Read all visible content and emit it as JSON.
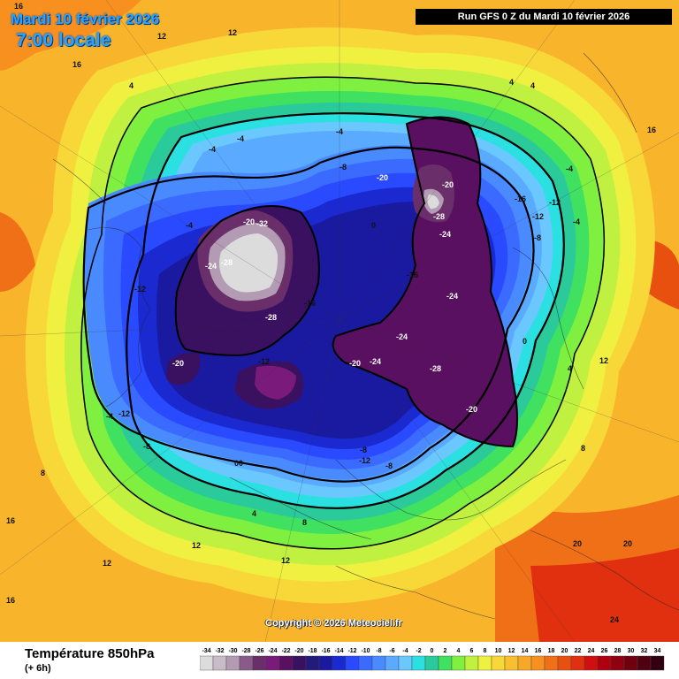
{
  "header": {
    "date_line": "Mardi 10 février 2026",
    "time_line": "7:00 locale",
    "run_info": "Run GFS 0 Z du Mardi 10 février 2026",
    "copyright": "Copyright © 2026 Meteociel.fr"
  },
  "legend": {
    "title": "Température 850hPa",
    "subtitle": "(+ 6h)",
    "scale": [
      {
        "v": "-34",
        "c": "#dcdcdc"
      },
      {
        "v": "-32",
        "c": "#c8bcc8"
      },
      {
        "v": "-30",
        "c": "#b49bb4"
      },
      {
        "v": "-28",
        "c": "#8a5a8a"
      },
      {
        "v": "-26",
        "c": "#6a2f6a"
      },
      {
        "v": "-24",
        "c": "#7a1a7a"
      },
      {
        "v": "-22",
        "c": "#5a1060"
      },
      {
        "v": "-20",
        "c": "#3a1060"
      },
      {
        "v": "-18",
        "c": "#231a7a"
      },
      {
        "v": "-16",
        "c": "#1a1aa0"
      },
      {
        "v": "-14",
        "c": "#1a2ad0"
      },
      {
        "v": "-12",
        "c": "#2a4aff"
      },
      {
        "v": "-10",
        "c": "#3a6aff"
      },
      {
        "v": "-8",
        "c": "#4a8aff"
      },
      {
        "v": "-6",
        "c": "#5aaaff"
      },
      {
        "v": "-4",
        "c": "#6ac8ff"
      },
      {
        "v": "-2",
        "c": "#2ae0e0"
      },
      {
        "v": "0",
        "c": "#2aca9a"
      },
      {
        "v": "2",
        "c": "#40e060"
      },
      {
        "v": "4",
        "c": "#80f040"
      },
      {
        "v": "6",
        "c": "#c0f040"
      },
      {
        "v": "8",
        "c": "#f0f040"
      },
      {
        "v": "10",
        "c": "#f8d838"
      },
      {
        "v": "12",
        "c": "#f8c030"
      },
      {
        "v": "14",
        "c": "#f8a828"
      },
      {
        "v": "16",
        "c": "#f89020"
      },
      {
        "v": "18",
        "c": "#f07018"
      },
      {
        "v": "20",
        "c": "#e85010"
      },
      {
        "v": "22",
        "c": "#e03010"
      },
      {
        "v": "24",
        "c": "#d01010"
      },
      {
        "v": "26",
        "c": "#b00010"
      },
      {
        "v": "28",
        "c": "#900010"
      },
      {
        "v": "30",
        "c": "#700010"
      },
      {
        "v": "32",
        "c": "#500010"
      },
      {
        "v": "34",
        "c": "#300010"
      }
    ]
  },
  "isotherm_labels": [
    {
      "t": "16"
    },
    {
      "t": "12"
    },
    {
      "t": "16"
    },
    {
      "t": "12"
    },
    {
      "t": "4"
    },
    {
      "t": "4"
    },
    {
      "t": "4"
    },
    {
      "t": "-4"
    },
    {
      "t": "-4"
    },
    {
      "t": "-4"
    },
    {
      "t": "0"
    },
    {
      "t": "-4"
    },
    {
      "t": "-8"
    },
    {
      "t": "-12"
    },
    {
      "t": "-12"
    },
    {
      "t": "-20"
    },
    {
      "t": "-20"
    },
    {
      "t": "-32"
    },
    {
      "t": "-28"
    },
    {
      "t": "-28"
    },
    {
      "t": "-24"
    },
    {
      "t": "-16"
    },
    {
      "t": "-16"
    },
    {
      "t": "-20"
    },
    {
      "t": "-24"
    },
    {
      "t": "-24"
    },
    {
      "t": "-24"
    },
    {
      "t": "-20"
    },
    {
      "t": "-28"
    },
    {
      "t": "-20"
    },
    {
      "t": "-16"
    },
    {
      "t": "-12"
    },
    {
      "t": "-12"
    },
    {
      "t": "-8"
    },
    {
      "t": "-4"
    },
    {
      "t": "-8"
    },
    {
      "t": "-12"
    },
    {
      "t": "-8"
    },
    {
      "t": "-20"
    },
    {
      "t": "-28"
    },
    {
      "t": "-24"
    },
    {
      "t": "-4"
    },
    {
      "t": "0"
    },
    {
      "t": "4"
    },
    {
      "t": "8"
    },
    {
      "t": "12"
    },
    {
      "t": "16"
    },
    {
      "t": "20"
    },
    {
      "t": "20"
    },
    {
      "t": "24"
    },
    {
      "t": "8"
    },
    {
      "t": "12"
    },
    {
      "t": "16"
    },
    {
      "t": "-4"
    },
    {
      "t": "-8"
    },
    {
      "t": "-12"
    },
    {
      "t": "00"
    },
    {
      "t": "4"
    },
    {
      "t": "8"
    },
    {
      "t": "12"
    },
    {
      "t": "16"
    },
    {
      "t": "12"
    }
  ]
}
